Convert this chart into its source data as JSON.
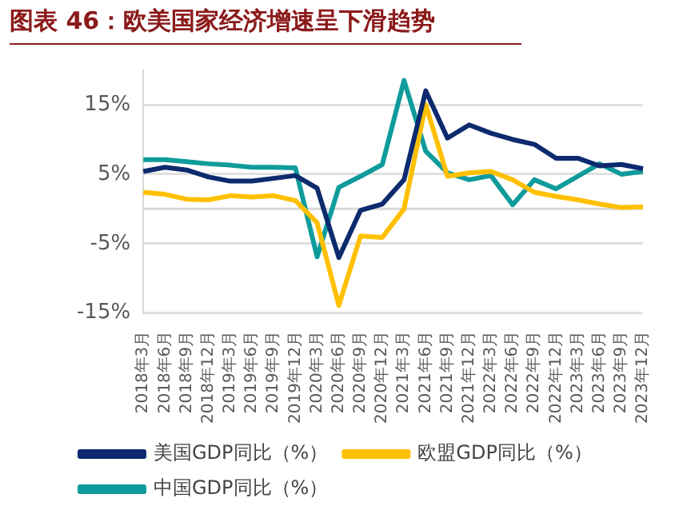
{
  "chart_data": {
    "type": "line",
    "title": "图表 46：欧美国家经济增速呈下滑趋势",
    "categories": [
      "2018年3月",
      "2018年6月",
      "2018年9月",
      "2018年12月",
      "2019年3月",
      "2019年6月",
      "2019年9月",
      "2019年12月",
      "2020年3月",
      "2020年6月",
      "2020年9月",
      "2020年12月",
      "2021年3月",
      "2021年6月",
      "2021年9月",
      "2021年12月",
      "2022年3月",
      "2022年6月",
      "2022年9月",
      "2022年12月",
      "2023年3月",
      "2023年6月",
      "2023年9月",
      "2023年12月"
    ],
    "series": [
      {
        "name": "美国GDP同比（%）",
        "color": "#0d2a6e",
        "values": [
          5.4,
          6,
          5.6,
          4.6,
          4,
          4,
          4.4,
          4.8,
          3,
          -7,
          -0.2,
          0.7,
          4.2,
          17,
          10.2,
          12.1,
          10.9,
          10,
          9.3,
          7.3,
          7.3,
          6.2,
          6.4,
          5.8
        ]
      },
      {
        "name": "欧盟GDP同比（%）",
        "color": "#ffc000",
        "values": [
          2.4,
          2.1,
          1.4,
          1.3,
          1.9,
          1.7,
          1.9,
          1.2,
          -2,
          -13.9,
          -3.9,
          -4.1,
          0,
          15,
          4.7,
          5.2,
          5.4,
          4.2,
          2.4,
          1.8,
          1.3,
          0.7,
          0.2,
          0.3
        ]
      },
      {
        "name": "中国GDP同比（%）",
        "color": "#0f9b9b",
        "values": [
          7.1,
          7.1,
          6.8,
          6.5,
          6.3,
          6,
          6,
          5.9,
          -6.9,
          3.1,
          4.7,
          6.4,
          18.5,
          8.3,
          5.2,
          4.2,
          4.8,
          0.6,
          4.2,
          2.9,
          4.7,
          6.5,
          5,
          5.4
        ]
      }
    ],
    "yticks": [
      {
        "value": -15,
        "label": "-15%"
      },
      {
        "value": -5,
        "label": "-5%"
      },
      {
        "value": 5,
        "label": "5%"
      },
      {
        "value": 15,
        "label": "15%"
      }
    ],
    "ylim": [
      -15,
      20
    ],
    "ref_lines": [
      {
        "axis": "y",
        "value": 0,
        "color": "#d9d9d9"
      }
    ],
    "grid": "y",
    "legend": "bottom",
    "marker": "none",
    "line_style": "solid"
  }
}
